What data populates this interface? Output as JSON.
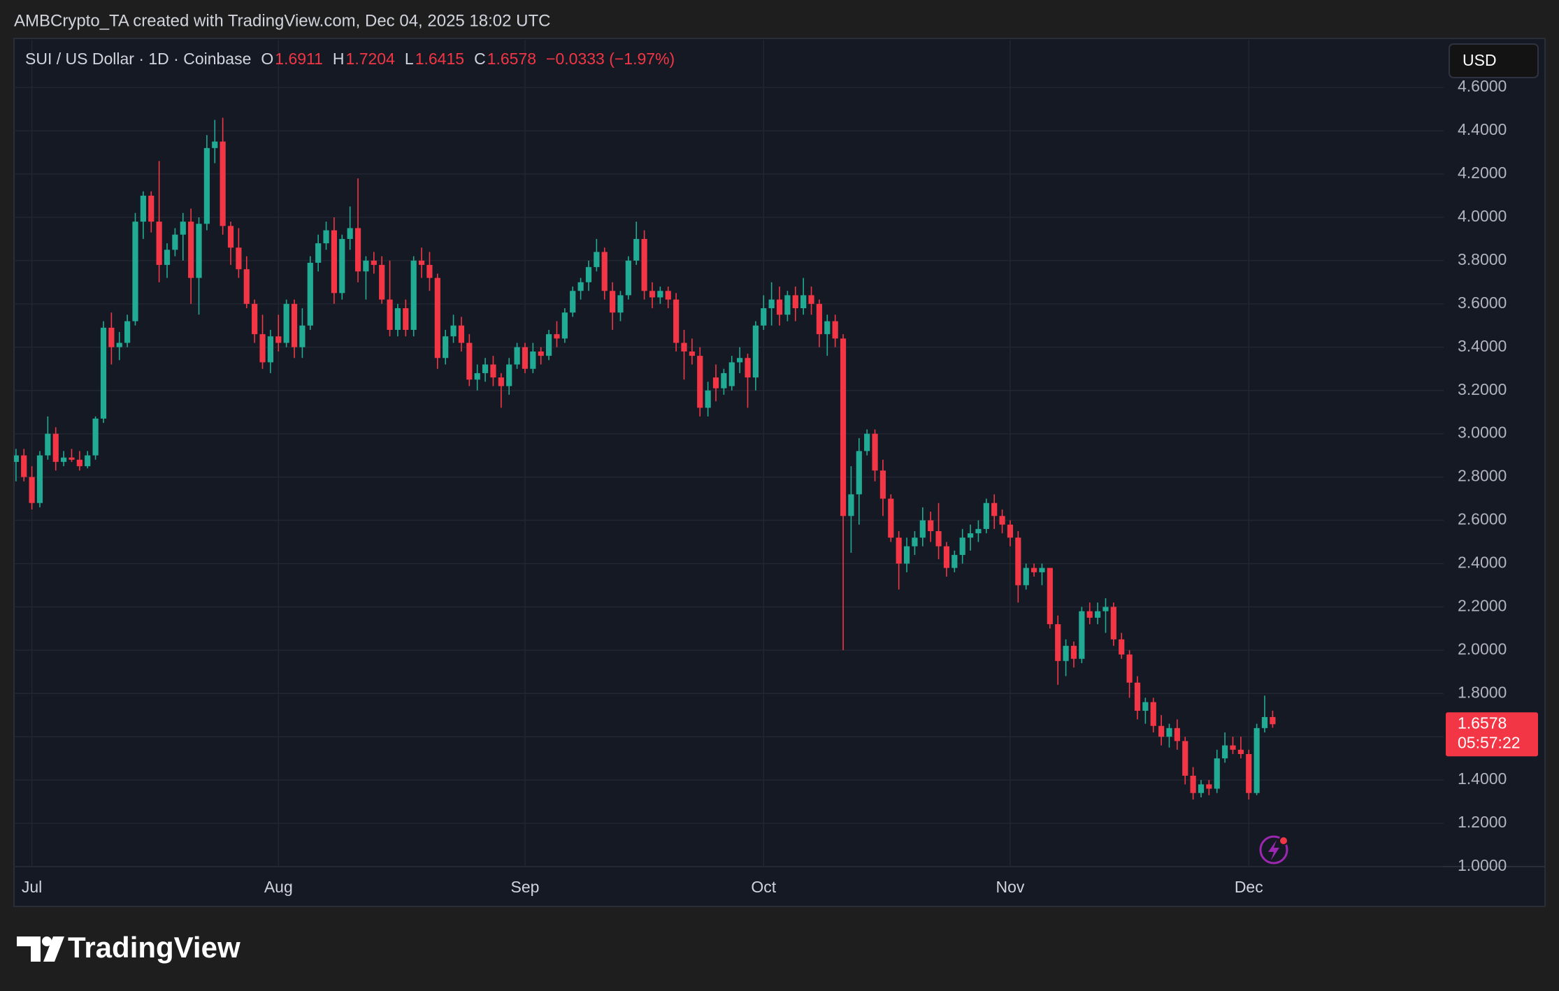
{
  "header": {
    "attribution": "AMBCrypto_TA created with TradingView.com, Dec 04, 2025 18:02 UTC"
  },
  "chart_data": {
    "type": "candlestick",
    "title": "SUI / US Dollar · 1D · Coinbase",
    "ohlc_labels": [
      "O",
      "H",
      "L",
      "C"
    ],
    "change": "−0.0333 (−1.97%)",
    "currency": "USD",
    "countdown": "05:57:22",
    "up_color": "#22ab94",
    "down_color": "#f23645",
    "grid": true,
    "x": [
      -2,
      -1,
      0,
      1,
      2,
      3,
      4,
      5,
      6,
      7,
      8,
      9,
      10,
      11,
      12,
      13,
      14,
      15,
      16,
      17,
      18,
      19,
      20,
      21,
      22,
      23,
      24,
      25,
      26,
      27,
      28,
      29,
      30,
      31,
      32,
      33,
      34,
      35,
      36,
      37,
      38,
      39,
      40,
      41,
      42,
      43,
      44,
      45,
      46,
      47,
      48,
      49,
      50,
      51,
      52,
      53,
      54,
      55,
      56,
      57,
      58,
      59,
      60,
      61,
      62,
      63,
      64,
      65,
      66,
      67,
      68,
      69,
      70,
      71,
      72,
      73,
      74,
      75,
      76,
      77,
      78,
      79,
      80,
      81,
      82,
      83,
      84,
      85,
      86,
      87,
      88,
      89,
      90,
      91,
      92,
      93,
      94,
      95,
      96,
      97,
      98,
      99,
      100,
      101,
      102,
      103,
      104,
      105,
      106,
      107,
      108,
      109,
      110,
      111,
      112,
      113,
      114,
      115,
      116,
      117,
      118,
      119,
      120,
      121,
      122,
      123,
      124,
      125,
      126,
      127,
      128,
      129,
      130,
      131,
      132,
      133,
      134,
      135,
      136,
      137,
      138,
      139,
      140,
      141,
      142,
      143,
      144,
      145,
      146,
      147,
      148,
      149,
      150,
      151,
      152,
      153,
      154,
      155,
      156
    ],
    "open": [
      2.87,
      2.9,
      2.8,
      2.68,
      2.9,
      3.0,
      2.87,
      2.89,
      2.88,
      2.85,
      2.9,
      3.07,
      3.49,
      3.4,
      3.42,
      3.52,
      3.98,
      4.1,
      3.98,
      3.78,
      3.85,
      3.92,
      3.98,
      3.72,
      3.97,
      4.32,
      4.35,
      3.96,
      3.86,
      3.76,
      3.6,
      3.46,
      3.33,
      3.45,
      3.42,
      3.6,
      3.4,
      3.5,
      3.79,
      3.88,
      3.94,
      3.65,
      3.9,
      3.95,
      3.75,
      3.8,
      3.78,
      3.62,
      3.48,
      3.58,
      3.48,
      3.8,
      3.78,
      3.72,
      3.35,
      3.45,
      3.5,
      3.42,
      3.25,
      3.28,
      3.32,
      3.26,
      3.22,
      3.32,
      3.4,
      3.3,
      3.38,
      3.36,
      3.46,
      3.44,
      3.56,
      3.66,
      3.7,
      3.77,
      3.84,
      3.66,
      3.56,
      3.64,
      3.8,
      3.9,
      3.66,
      3.63,
      3.66,
      3.62,
      3.42,
      3.38,
      3.36,
      3.12,
      3.26,
      3.21,
      3.22,
      3.33,
      3.35,
      3.26,
      3.5,
      3.58,
      3.62,
      3.55,
      3.64,
      3.58,
      3.64,
      3.6,
      3.46,
      3.52,
      3.44,
      2.62,
      2.72,
      2.92,
      3.0,
      2.83,
      2.7,
      2.52,
      2.4,
      2.48,
      2.52,
      2.6,
      2.55,
      2.48,
      2.38,
      2.44,
      2.52,
      2.54,
      2.56,
      2.68,
      2.62,
      2.58,
      2.52,
      2.3,
      2.38,
      2.36,
      2.38,
      2.12,
      1.95,
      2.02,
      1.96,
      2.18,
      2.15,
      2.18,
      2.2,
      2.05,
      1.98,
      1.85,
      1.72,
      1.76,
      1.65,
      1.6,
      1.64,
      1.58,
      1.42,
      1.34,
      1.38,
      1.36,
      1.5,
      1.56,
      1.54,
      1.52,
      1.34,
      1.64,
      1.6911
    ],
    "high": [
      2.93,
      2.93,
      2.85,
      2.92,
      3.08,
      3.03,
      2.92,
      2.93,
      2.92,
      2.92,
      3.08,
      3.52,
      3.56,
      3.47,
      3.55,
      4.02,
      4.12,
      4.12,
      4.26,
      3.88,
      3.95,
      4.02,
      4.04,
      4.0,
      4.38,
      4.45,
      4.46,
      3.98,
      3.95,
      3.82,
      3.62,
      3.55,
      3.48,
      3.55,
      3.62,
      3.62,
      3.58,
      3.82,
      3.92,
      3.98,
      4.0,
      3.92,
      4.05,
      4.18,
      3.82,
      3.84,
      3.82,
      3.8,
      3.6,
      3.62,
      3.82,
      3.86,
      3.84,
      3.74,
      3.48,
      3.55,
      3.54,
      3.46,
      3.32,
      3.35,
      3.36,
      3.28,
      3.35,
      3.42,
      3.42,
      3.42,
      3.4,
      3.48,
      3.52,
      3.58,
      3.68,
      3.72,
      3.8,
      3.9,
      3.86,
      3.7,
      3.66,
      3.82,
      3.98,
      3.94,
      3.7,
      3.68,
      3.68,
      3.65,
      3.48,
      3.44,
      3.4,
      3.24,
      3.32,
      3.3,
      3.36,
      3.4,
      3.37,
      3.52,
      3.64,
      3.7,
      3.68,
      3.66,
      3.68,
      3.72,
      3.68,
      3.62,
      3.55,
      3.55,
      3.46,
      2.85,
      2.98,
      3.02,
      3.02,
      2.88,
      2.72,
      2.55,
      2.52,
      2.55,
      2.66,
      2.64,
      2.68,
      2.5,
      2.46,
      2.56,
      2.58,
      2.6,
      2.7,
      2.72,
      2.65,
      2.6,
      2.55,
      2.4,
      2.4,
      2.4,
      2.38,
      2.16,
      2.05,
      2.04,
      2.2,
      2.22,
      2.22,
      2.24,
      2.22,
      2.08,
      2.0,
      1.88,
      1.78,
      1.78,
      1.7,
      1.66,
      1.68,
      1.6,
      1.46,
      1.4,
      1.4,
      1.54,
      1.62,
      1.6,
      1.6,
      1.54,
      1.66,
      1.79,
      1.7204
    ],
    "low": [
      2.78,
      2.78,
      2.65,
      2.66,
      2.88,
      2.83,
      2.85,
      2.87,
      2.83,
      2.84,
      2.88,
      3.05,
      3.32,
      3.34,
      3.4,
      3.5,
      3.9,
      3.93,
      3.7,
      3.72,
      3.82,
      3.8,
      3.6,
      3.55,
      3.94,
      4.25,
      3.92,
      3.78,
      3.72,
      3.58,
      3.42,
      3.3,
      3.28,
      3.38,
      3.4,
      3.35,
      3.35,
      3.48,
      3.75,
      3.85,
      3.6,
      3.62,
      3.85,
      3.7,
      3.62,
      3.74,
      3.6,
      3.45,
      3.45,
      3.45,
      3.45,
      3.72,
      3.66,
      3.3,
      3.32,
      3.42,
      3.38,
      3.22,
      3.2,
      3.24,
      3.22,
      3.12,
      3.18,
      3.3,
      3.28,
      3.28,
      3.32,
      3.34,
      3.4,
      3.42,
      3.54,
      3.62,
      3.66,
      3.75,
      3.62,
      3.48,
      3.52,
      3.62,
      3.78,
      3.62,
      3.58,
      3.6,
      3.58,
      3.38,
      3.25,
      3.32,
      3.08,
      3.08,
      3.15,
      3.18,
      3.2,
      3.28,
      3.12,
      3.2,
      3.48,
      3.5,
      3.5,
      3.52,
      3.52,
      3.55,
      3.55,
      3.4,
      3.36,
      3.4,
      2.0,
      2.45,
      2.58,
      2.9,
      2.78,
      2.62,
      2.5,
      2.28,
      2.36,
      2.44,
      2.48,
      2.5,
      2.42,
      2.34,
      2.36,
      2.4,
      2.46,
      2.5,
      2.54,
      2.56,
      2.54,
      2.48,
      2.22,
      2.28,
      2.34,
      2.3,
      2.1,
      1.84,
      1.88,
      1.92,
      1.94,
      2.12,
      2.12,
      2.08,
      2.02,
      1.96,
      1.78,
      1.68,
      1.66,
      1.62,
      1.56,
      1.55,
      1.54,
      1.38,
      1.31,
      1.32,
      1.33,
      1.34,
      1.48,
      1.52,
      1.5,
      1.31,
      1.33,
      1.62,
      1.6415
    ],
    "close": [
      2.9,
      2.8,
      2.68,
      2.9,
      3.0,
      2.87,
      2.89,
      2.88,
      2.85,
      2.9,
      3.07,
      3.49,
      3.4,
      3.42,
      3.52,
      3.98,
      4.1,
      3.98,
      3.78,
      3.85,
      3.92,
      3.98,
      3.72,
      3.97,
      4.32,
      4.35,
      3.96,
      3.86,
      3.76,
      3.6,
      3.46,
      3.33,
      3.45,
      3.42,
      3.6,
      3.4,
      3.5,
      3.79,
      3.88,
      3.94,
      3.65,
      3.9,
      3.95,
      3.75,
      3.8,
      3.78,
      3.62,
      3.48,
      3.58,
      3.48,
      3.8,
      3.78,
      3.72,
      3.35,
      3.45,
      3.5,
      3.42,
      3.25,
      3.28,
      3.32,
      3.26,
      3.22,
      3.32,
      3.4,
      3.3,
      3.38,
      3.36,
      3.46,
      3.44,
      3.56,
      3.66,
      3.7,
      3.77,
      3.84,
      3.66,
      3.56,
      3.64,
      3.8,
      3.9,
      3.66,
      3.63,
      3.66,
      3.62,
      3.42,
      3.38,
      3.36,
      3.12,
      3.2,
      3.21,
      3.28,
      3.33,
      3.35,
      3.26,
      3.5,
      3.58,
      3.62,
      3.55,
      3.64,
      3.58,
      3.64,
      3.6,
      3.46,
      3.52,
      3.44,
      2.62,
      2.72,
      2.92,
      3.0,
      2.83,
      2.7,
      2.52,
      2.4,
      2.48,
      2.52,
      2.6,
      2.55,
      2.48,
      2.38,
      2.44,
      2.52,
      2.54,
      2.56,
      2.68,
      2.62,
      2.58,
      2.52,
      2.3,
      2.38,
      2.36,
      2.38,
      2.12,
      1.95,
      2.02,
      1.96,
      2.18,
      2.15,
      2.18,
      2.2,
      2.05,
      1.98,
      1.85,
      1.72,
      1.76,
      1.65,
      1.6,
      1.64,
      1.58,
      1.42,
      1.34,
      1.38,
      1.36,
      1.5,
      1.56,
      1.54,
      1.52,
      1.34,
      1.64,
      1.6911,
      1.6578
    ],
    "xlim": [
      -2.25,
      177.5
    ],
    "xticks": [
      {
        "value": 0,
        "label": "Jul"
      },
      {
        "value": 31,
        "label": "Aug"
      },
      {
        "value": 62,
        "label": "Sep"
      },
      {
        "value": 92,
        "label": "Oct"
      },
      {
        "value": 123,
        "label": "Nov"
      },
      {
        "value": 153,
        "label": "Dec"
      }
    ],
    "ylim": [
      1.0,
      4.82
    ],
    "yticks": [
      {
        "value": 1.0,
        "label": "1.0000"
      },
      {
        "value": 1.2,
        "label": "1.2000"
      },
      {
        "value": 1.4,
        "label": "1.4000"
      },
      {
        "value": 1.6,
        "label": "1.6000"
      },
      {
        "value": 1.8,
        "label": "1.8000"
      },
      {
        "value": 2.0,
        "label": "2.0000"
      },
      {
        "value": 2.2,
        "label": "2.2000"
      },
      {
        "value": 2.4,
        "label": "2.4000"
      },
      {
        "value": 2.6,
        "label": "2.6000"
      },
      {
        "value": 2.8,
        "label": "2.8000"
      },
      {
        "value": 3.0,
        "label": "3.0000"
      },
      {
        "value": 3.2,
        "label": "3.2000"
      },
      {
        "value": 3.4,
        "label": "3.4000"
      },
      {
        "value": 3.6,
        "label": "3.6000"
      },
      {
        "value": 3.8,
        "label": "3.8000"
      },
      {
        "value": 4.0,
        "label": "4.0000"
      },
      {
        "value": 4.2,
        "label": "4.2000"
      },
      {
        "value": 4.4,
        "label": "4.4000"
      },
      {
        "value": 4.6,
        "label": "4.6000"
      }
    ]
  },
  "footer": {
    "brand": "TradingView"
  }
}
